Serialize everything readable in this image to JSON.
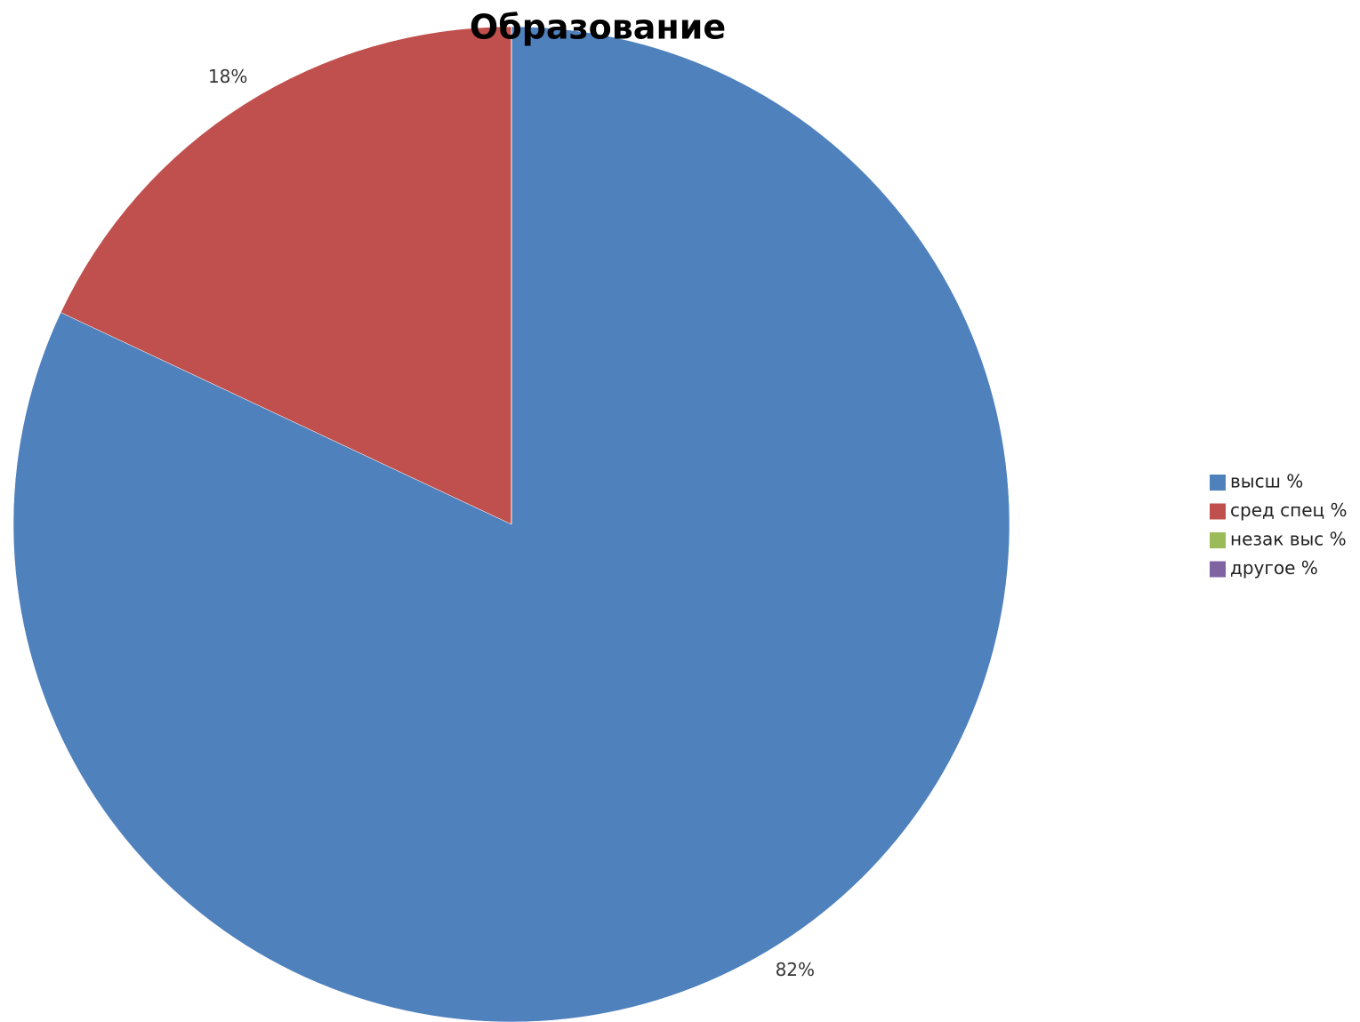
{
  "chart_data": {
    "type": "pie",
    "title": "Образование",
    "categories": [
      "высш %",
      "сред спец %",
      "незак выс %",
      "другое %"
    ],
    "values": [
      82,
      18,
      0,
      0
    ],
    "value_labels": [
      "82%",
      "18%",
      null,
      null
    ],
    "colors": [
      "#4f81bd",
      "#c0504d",
      "#9bbb59",
      "#8064a2"
    ],
    "legend": "right"
  }
}
